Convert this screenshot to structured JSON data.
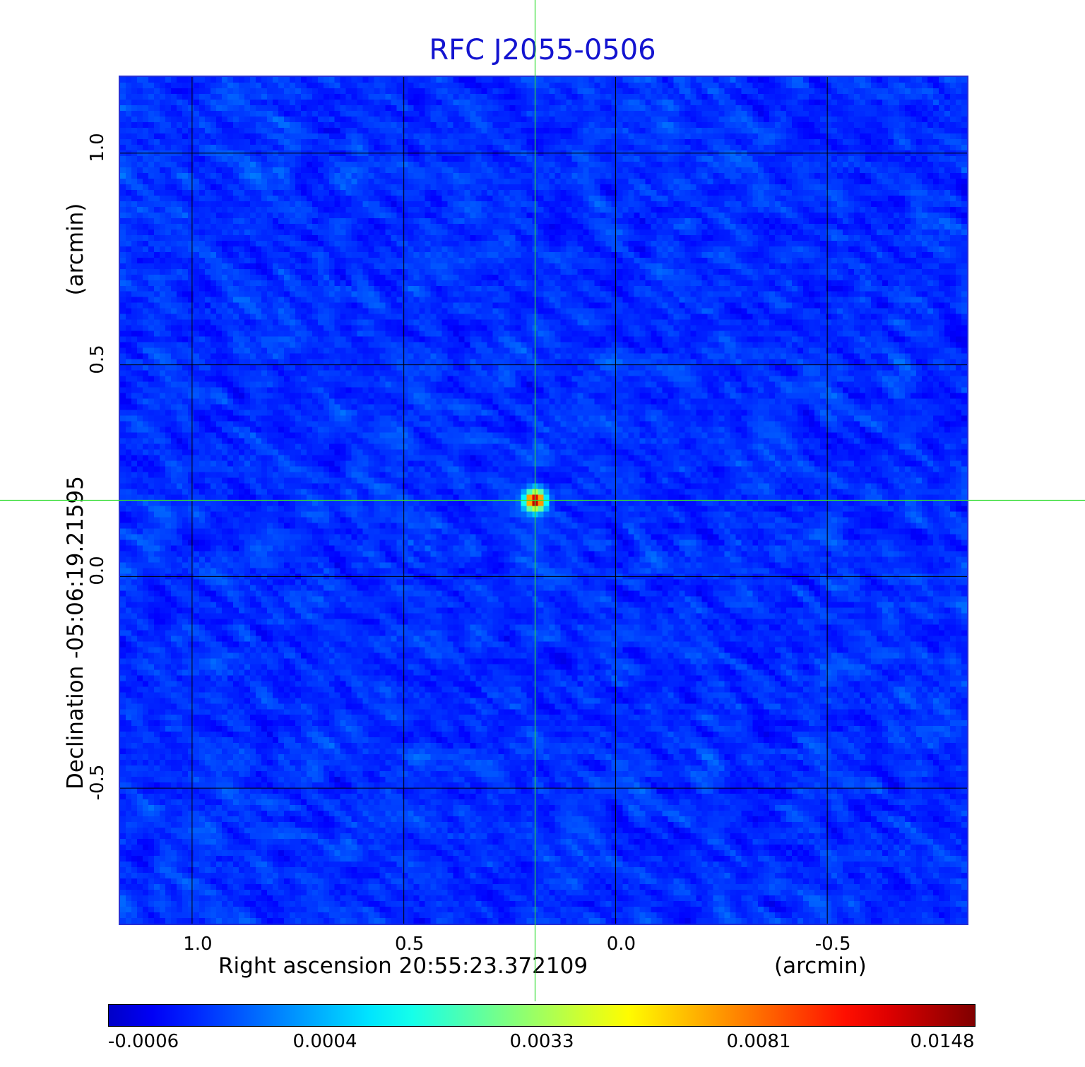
{
  "chart_data": {
    "type": "heatmap",
    "title": "RFC J2055-0506",
    "x_axis": {
      "label": "Right ascension  20:55:23.372109",
      "unit": "(arcmin)",
      "ticks": [
        "1.0",
        "0.5",
        "0.0",
        "-0.5"
      ],
      "tick_values": [
        1.0,
        0.5,
        0.0,
        -0.5
      ],
      "range": [
        1.17,
        -0.83
      ]
    },
    "y_axis": {
      "label": "Declination  -05:06:19.21595",
      "unit": "(arcmin)",
      "ticks": [
        "1.0",
        "0.5",
        "0.0",
        "-0.5"
      ],
      "tick_values": [
        1.0,
        0.5,
        0.0,
        -0.5
      ],
      "range": [
        -0.82,
        1.18
      ]
    },
    "grid": true,
    "colormap": "jet",
    "colorbar": {
      "placement": "bottom",
      "ticks": [
        "-0.0006",
        "0.0004",
        "0.0033",
        "0.0081",
        "0.0148"
      ],
      "tick_values": [
        -0.0006,
        0.0004,
        0.0033,
        0.0081,
        0.0148
      ]
    },
    "peak": {
      "x": 0.19,
      "y": 0.18,
      "value": 0.0148
    },
    "crosshair": {
      "x": 0.19,
      "y": 0.18
    },
    "background_level": 0.0
  }
}
